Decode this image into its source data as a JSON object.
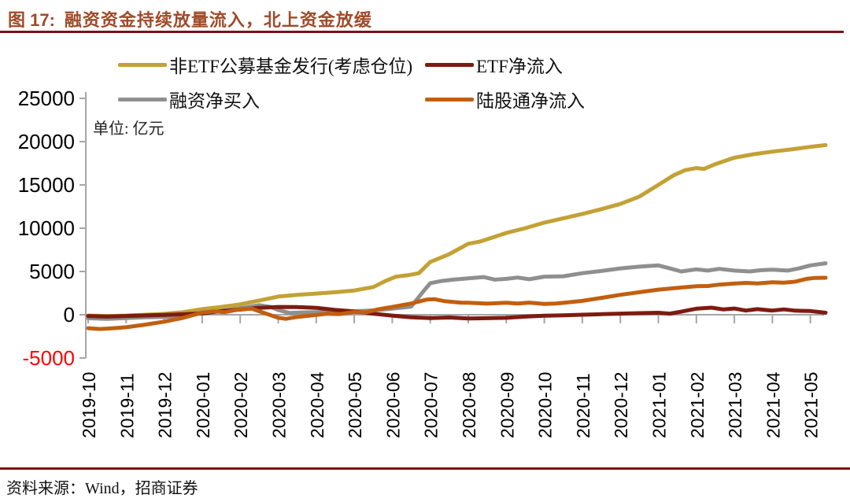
{
  "header": {
    "figure_label": "图 17:",
    "title": "融资资金持续放量流入，北上资金放缓"
  },
  "unit_note": "单位: 亿元",
  "footer": {
    "source": "资料来源：Wind，招商证券"
  },
  "colors": {
    "accent_maroon_rule": "#7B1215",
    "title_text": "#A04A28",
    "axis_gray": "#A6A6A6",
    "negative_tick_label": "#FF0000",
    "tick_label": "#000000"
  },
  "chart_data": {
    "type": "line",
    "title": "融资资金持续放量流入，北上资金放缓",
    "xlabel": "",
    "ylabel": "单位: 亿元",
    "x_unit": "months, index 0 = 2019-10; fractional = intra-month (weekly) readings",
    "ylim": [
      -5000,
      25000
    ],
    "y_ticks": [
      25000,
      20000,
      15000,
      10000,
      5000,
      0,
      -5000
    ],
    "grid": false,
    "legend_position": "top",
    "x_categories": [
      "2019-10",
      "2019-11",
      "2019-12",
      "2020-01",
      "2020-02",
      "2020-03",
      "2020-04",
      "2020-05",
      "2020-06",
      "2020-07",
      "2020-08",
      "2020-09",
      "2020-10",
      "2020-11",
      "2020-12",
      "2021-01",
      "2021-02",
      "2021-03",
      "2021-04",
      "2021-05"
    ],
    "series": [
      {
        "name": "非ETF公募基金发行(考虑仓位)",
        "color": "#C3A135",
        "points": [
          [
            0,
            -100
          ],
          [
            0.5,
            -150
          ],
          [
            1,
            -100
          ],
          [
            1.5,
            0
          ],
          [
            2,
            100
          ],
          [
            2.5,
            300
          ],
          [
            3,
            650
          ],
          [
            3.5,
            900
          ],
          [
            4,
            1200
          ],
          [
            4.5,
            1650
          ],
          [
            5,
            2100
          ],
          [
            5.5,
            2300
          ],
          [
            6,
            2450
          ],
          [
            6.5,
            2600
          ],
          [
            7,
            2800
          ],
          [
            7.5,
            3200
          ],
          [
            7.8,
            3850
          ],
          [
            8.1,
            4400
          ],
          [
            8.4,
            4550
          ],
          [
            8.7,
            4800
          ],
          [
            9,
            6100
          ],
          [
            9.5,
            7000
          ],
          [
            10,
            8200
          ],
          [
            10.3,
            8450
          ],
          [
            11,
            9450
          ],
          [
            11.5,
            10000
          ],
          [
            12,
            10650
          ],
          [
            12.5,
            11150
          ],
          [
            13,
            11650
          ],
          [
            13.5,
            12200
          ],
          [
            14,
            12800
          ],
          [
            14.5,
            13650
          ],
          [
            15,
            15000
          ],
          [
            15.4,
            16100
          ],
          [
            15.7,
            16700
          ],
          [
            16,
            16950
          ],
          [
            16.2,
            16850
          ],
          [
            16.5,
            17400
          ],
          [
            17,
            18150
          ],
          [
            17.5,
            18550
          ],
          [
            18,
            18850
          ],
          [
            18.5,
            19100
          ],
          [
            19,
            19400
          ],
          [
            19.4,
            19600
          ]
        ]
      },
      {
        "name": "ETF净流入",
        "color": "#7E1B10",
        "points": [
          [
            0,
            -150
          ],
          [
            0.5,
            -220
          ],
          [
            1,
            -150
          ],
          [
            1.5,
            -80
          ],
          [
            2,
            -30
          ],
          [
            2.5,
            50
          ],
          [
            3,
            150
          ],
          [
            3.5,
            420
          ],
          [
            4,
            600
          ],
          [
            4.5,
            800
          ],
          [
            5,
            900
          ],
          [
            5.5,
            880
          ],
          [
            6,
            800
          ],
          [
            6.5,
            550
          ],
          [
            7,
            380
          ],
          [
            7.5,
            120
          ],
          [
            8,
            -100
          ],
          [
            8.5,
            -300
          ],
          [
            9,
            -380
          ],
          [
            9.5,
            -320
          ],
          [
            10,
            -430
          ],
          [
            10.5,
            -400
          ],
          [
            11,
            -350
          ],
          [
            11.5,
            -220
          ],
          [
            12,
            -120
          ],
          [
            12.5,
            -60
          ],
          [
            13,
            0
          ],
          [
            13.5,
            60
          ],
          [
            14,
            130
          ],
          [
            14.5,
            180
          ],
          [
            15,
            230
          ],
          [
            15.3,
            130
          ],
          [
            15.6,
            350
          ],
          [
            16,
            700
          ],
          [
            16.4,
            820
          ],
          [
            16.7,
            620
          ],
          [
            17,
            720
          ],
          [
            17.3,
            480
          ],
          [
            17.6,
            650
          ],
          [
            18,
            480
          ],
          [
            18.3,
            620
          ],
          [
            18.6,
            470
          ],
          [
            19,
            430
          ],
          [
            19.4,
            230
          ]
        ]
      },
      {
        "name": "融资净买入",
        "color": "#8F8F8F",
        "points": [
          [
            0,
            -400
          ],
          [
            0.5,
            -480
          ],
          [
            1,
            -380
          ],
          [
            1.5,
            -300
          ],
          [
            2,
            -250
          ],
          [
            2.5,
            -180
          ],
          [
            3,
            280
          ],
          [
            3.5,
            420
          ],
          [
            4,
            750
          ],
          [
            4.5,
            1100
          ],
          [
            4.8,
            900
          ],
          [
            5,
            550
          ],
          [
            5.3,
            200
          ],
          [
            5.6,
            260
          ],
          [
            6,
            300
          ],
          [
            6.5,
            350
          ],
          [
            7,
            400
          ],
          [
            7.5,
            500
          ],
          [
            8,
            700
          ],
          [
            8.5,
            950
          ],
          [
            8.8,
            2600
          ],
          [
            9,
            3650
          ],
          [
            9.3,
            3900
          ],
          [
            9.6,
            4050
          ],
          [
            10,
            4200
          ],
          [
            10.4,
            4350
          ],
          [
            10.7,
            4050
          ],
          [
            11,
            4150
          ],
          [
            11.3,
            4300
          ],
          [
            11.6,
            4100
          ],
          [
            12,
            4400
          ],
          [
            12.5,
            4450
          ],
          [
            13,
            4800
          ],
          [
            13.5,
            5050
          ],
          [
            14,
            5350
          ],
          [
            14.5,
            5550
          ],
          [
            15,
            5700
          ],
          [
            15.3,
            5350
          ],
          [
            15.6,
            5000
          ],
          [
            16,
            5250
          ],
          [
            16.3,
            5100
          ],
          [
            16.6,
            5300
          ],
          [
            17,
            5100
          ],
          [
            17.4,
            5000
          ],
          [
            17.7,
            5150
          ],
          [
            18,
            5200
          ],
          [
            18.4,
            5100
          ],
          [
            18.7,
            5350
          ],
          [
            19,
            5700
          ],
          [
            19.4,
            5950
          ]
        ]
      },
      {
        "name": "陆股通净流入",
        "color": "#C25F0F",
        "points": [
          [
            0,
            -1550
          ],
          [
            0.3,
            -1650
          ],
          [
            0.6,
            -1580
          ],
          [
            1,
            -1450
          ],
          [
            1.5,
            -1150
          ],
          [
            2,
            -800
          ],
          [
            2.5,
            -350
          ],
          [
            3,
            250
          ],
          [
            3.3,
            380
          ],
          [
            3.6,
            300
          ],
          [
            4,
            650
          ],
          [
            4.3,
            700
          ],
          [
            4.6,
            250
          ],
          [
            5,
            -350
          ],
          [
            5.2,
            -470
          ],
          [
            5.5,
            -250
          ],
          [
            6,
            -30
          ],
          [
            6.3,
            120
          ],
          [
            6.6,
            60
          ],
          [
            7,
            320
          ],
          [
            7.3,
            260
          ],
          [
            7.6,
            600
          ],
          [
            8,
            900
          ],
          [
            8.5,
            1300
          ],
          [
            8.9,
            1750
          ],
          [
            9.1,
            1800
          ],
          [
            9.4,
            1550
          ],
          [
            9.8,
            1400
          ],
          [
            10,
            1380
          ],
          [
            10.5,
            1280
          ],
          [
            11,
            1380
          ],
          [
            11.3,
            1300
          ],
          [
            11.6,
            1400
          ],
          [
            12,
            1250
          ],
          [
            12.3,
            1300
          ],
          [
            12.6,
            1420
          ],
          [
            13,
            1600
          ],
          [
            13.5,
            1950
          ],
          [
            14,
            2300
          ],
          [
            14.5,
            2600
          ],
          [
            15,
            2900
          ],
          [
            15.5,
            3100
          ],
          [
            16,
            3300
          ],
          [
            16.3,
            3320
          ],
          [
            16.6,
            3480
          ],
          [
            17,
            3600
          ],
          [
            17.3,
            3680
          ],
          [
            17.6,
            3620
          ],
          [
            18,
            3750
          ],
          [
            18.3,
            3700
          ],
          [
            18.6,
            3820
          ],
          [
            18.9,
            4150
          ],
          [
            19.1,
            4250
          ],
          [
            19.4,
            4270
          ]
        ]
      }
    ]
  }
}
